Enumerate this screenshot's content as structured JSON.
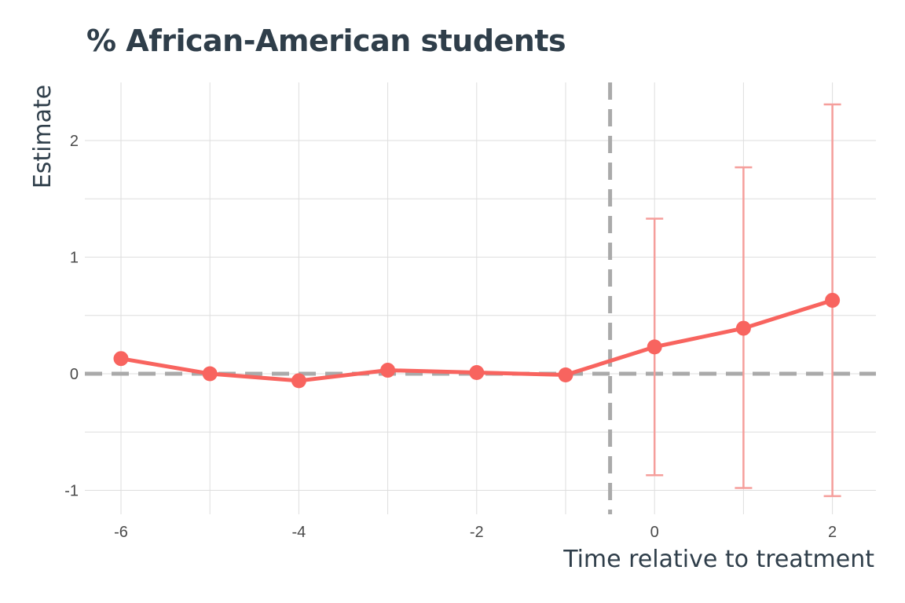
{
  "chart_data": {
    "type": "scatter",
    "title": "% African-American students",
    "xlabel": "Time relative to treatment",
    "ylabel": "Estimate",
    "xlim": [
      -6.4,
      2.5
    ],
    "ylim": [
      -1.2,
      2.5
    ],
    "x_ticks": [
      -6,
      -4,
      -2,
      0,
      2
    ],
    "y_ticks": [
      -1,
      0,
      1,
      2
    ],
    "grid": true,
    "reference_lines": {
      "vertical_x": -0.5,
      "horizontal_y": 0
    },
    "series": [
      {
        "x": [
          -6,
          -5,
          -4,
          -3,
          -2,
          -1,
          0,
          1,
          2
        ],
        "y": [
          0.13,
          0.0,
          -0.06,
          0.03,
          0.01,
          -0.01,
          0.23,
          0.39,
          0.63
        ],
        "ci_lower": [
          null,
          null,
          null,
          null,
          null,
          null,
          -0.87,
          -0.98,
          -1.05
        ],
        "ci_upper": [
          null,
          null,
          null,
          null,
          null,
          null,
          1.33,
          1.77,
          2.31
        ]
      }
    ],
    "colors": {
      "series": "#f8645f",
      "errorbar": "#f59e9b",
      "reference": "#aaaaaa",
      "grid": "#dedede"
    }
  }
}
